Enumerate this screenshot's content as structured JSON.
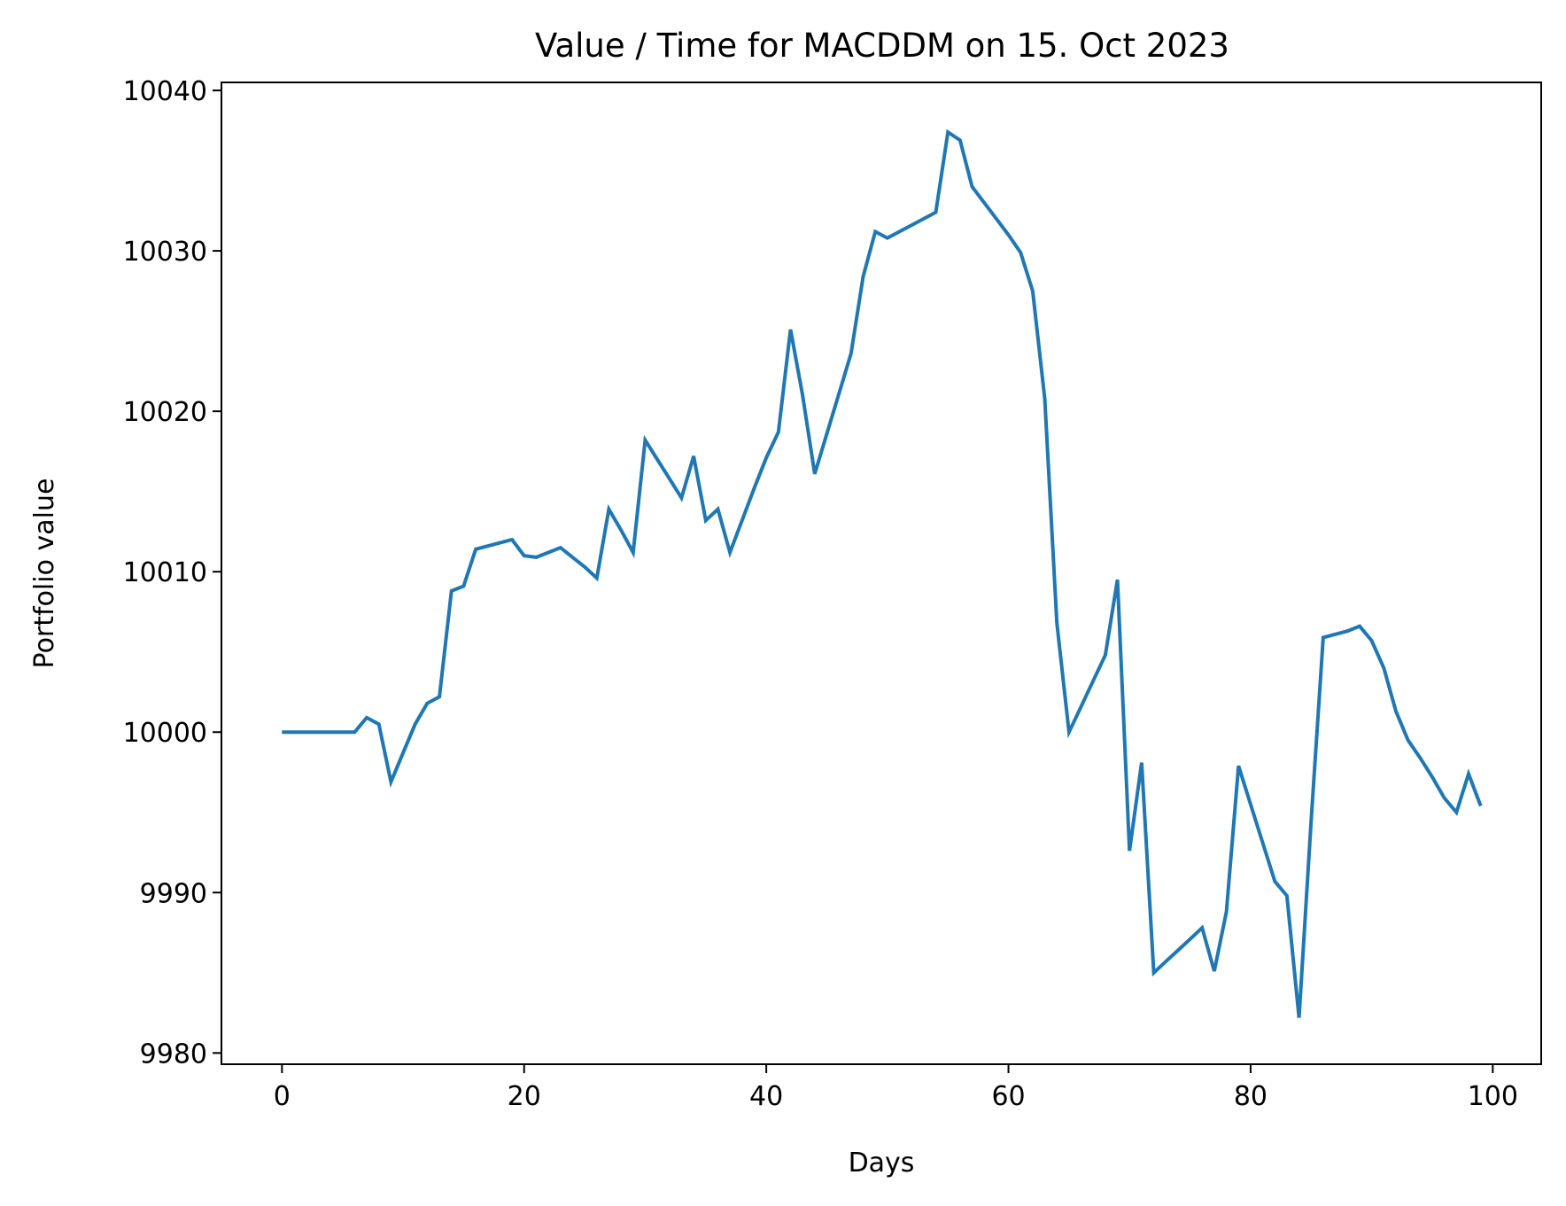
{
  "chart_data": {
    "type": "line",
    "title": "Value / Time for MACDDM on 15. Oct 2023",
    "xlabel": "Days",
    "ylabel": "Portfolio value",
    "xlim": [
      -5,
      104
    ],
    "ylim": [
      9979.3,
      10040.5
    ],
    "xticks": [
      0,
      20,
      40,
      60,
      80,
      100
    ],
    "yticks": [
      9980,
      9990,
      10000,
      10010,
      10020,
      10030,
      10040
    ],
    "grid": false,
    "legend": "none",
    "series": [
      {
        "color": "#1f77b4",
        "x": [
          0,
          1,
          2,
          3,
          4,
          5,
          6,
          7,
          8,
          9,
          10,
          11,
          12,
          13,
          14,
          15,
          16,
          17,
          18,
          19,
          20,
          21,
          22,
          23,
          24,
          25,
          26,
          27,
          28,
          29,
          30,
          31,
          32,
          33,
          34,
          35,
          36,
          37,
          38,
          39,
          40,
          41,
          42,
          43,
          44,
          45,
          46,
          47,
          48,
          49,
          50,
          51,
          52,
          53,
          54,
          55,
          56,
          57,
          58,
          59,
          60,
          61,
          62,
          63,
          64,
          65,
          66,
          67,
          68,
          69,
          70,
          71,
          72,
          73,
          74,
          75,
          76,
          77,
          78,
          79,
          80,
          81,
          82,
          83,
          84,
          85,
          86,
          87,
          88,
          89,
          90,
          91,
          92,
          93,
          94,
          95,
          96,
          97,
          98,
          99
        ],
        "values": [
          10000.0,
          10000.0,
          10000.0,
          10000.0,
          10000.0,
          10000.0,
          10000.0,
          10000.9,
          10000.5,
          9996.9,
          9998.7,
          10000.5,
          10001.8,
          10002.2,
          10008.8,
          10009.1,
          10011.4,
          10011.6,
          10011.8,
          10012.0,
          10011.0,
          10010.9,
          10011.2,
          10011.5,
          10010.9,
          10010.3,
          10009.6,
          10013.9,
          10012.6,
          10011.2,
          10018.2,
          10017.0,
          10015.8,
          10014.6,
          10017.2,
          10013.2,
          10013.9,
          10011.2,
          10013.2,
          10015.2,
          10017.1,
          10018.7,
          10025.1,
          10021.0,
          10016.1,
          10018.6,
          10021.1,
          10023.6,
          10028.4,
          10031.2,
          10030.8,
          10031.2,
          10031.6,
          10032.0,
          10032.4,
          10037.4,
          10036.9,
          10034.0,
          10033.0,
          10032.0,
          10031.0,
          10029.9,
          10027.5,
          10020.8,
          10006.8,
          10000.0,
          10001.6,
          10003.2,
          10004.8,
          10009.5,
          9992.6,
          9998.1,
          9985.0,
          9985.7,
          9986.4,
          9987.1,
          9987.8,
          9985.1,
          9988.8,
          9997.9,
          9995.5,
          9993.1,
          9990.7,
          9989.8,
          9982.2,
          9994.5,
          10005.9,
          10006.1,
          10006.3,
          10006.6,
          10005.7,
          10004.0,
          10001.3,
          9999.5,
          9998.4,
          9997.2,
          9995.9,
          9995.0,
          9997.4,
          9995.4
        ]
      }
    ]
  }
}
